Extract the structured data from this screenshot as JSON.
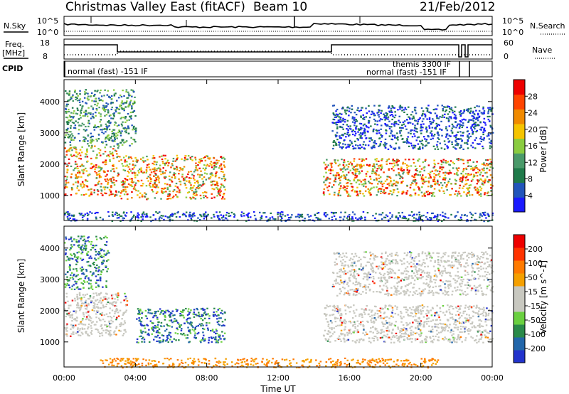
{
  "header": {
    "title": "Christmas Valley East (fitACF)",
    "beam": "Beam 10",
    "date": "21/Feb/2012"
  },
  "panel_labels": {
    "nsky": "N.Sky",
    "nsearch": "N.Search",
    "freq_top": "Freq.",
    "freq_unit": "[MHz]",
    "nave": "Nave",
    "cpid": "CPID"
  },
  "noise_ticks_left": [
    "10^5",
    "10^0"
  ],
  "noise_ticks_right": [
    "10^5",
    "10^0"
  ],
  "freq_ticks": [
    "18",
    "8"
  ],
  "nave_ticks": [
    "60",
    "0"
  ],
  "cpid_labels": {
    "left": "normal (fast) -151 IF",
    "right_top": "themis 3300 IF",
    "right_bottom": "normal (fast) -151 IF"
  },
  "colors": {
    "power_scale": [
      "#1a1aff",
      "#2255bb",
      "#1f7a4a",
      "#4a9a6a",
      "#8acc40",
      "#f5c400",
      "#f08a00",
      "#ff4400",
      "#ee0000"
    ],
    "velocity_scale": [
      "#2233cc",
      "#2266aa",
      "#2a8a4a",
      "#6ad040",
      "#c8c8c0",
      "#c8c8c0",
      "#f5a000",
      "#ff7a00",
      "#ff3300",
      "#ee0000"
    ]
  },
  "chart_data": [
    {
      "type": "heatmap",
      "name": "power",
      "xlabel": "",
      "ylabel": "Slant Range [km]",
      "xlim": [
        "00:00",
        "00:00"
      ],
      "ylim": [
        200,
        4700
      ],
      "yticks": [
        "4000",
        "3000",
        "2000",
        "1000"
      ],
      "colorbar_label": "Power [dB]",
      "colorbar_ticks": [
        "28",
        "24",
        "20",
        "16",
        "12",
        "8",
        "4"
      ],
      "colorbar_range": [
        0,
        30
      ],
      "regions": [
        {
          "x_start": "00:00",
          "x_end": "03:00",
          "range_km": [
            1000,
            2600
          ],
          "level": "high"
        },
        {
          "x_start": "00:00",
          "x_end": "04:00",
          "range_km": [
            2600,
            4400
          ],
          "level": "medium"
        },
        {
          "x_start": "03:00",
          "x_end": "09:00",
          "range_km": [
            900,
            2300
          ],
          "level": "high"
        },
        {
          "x_start": "14:30",
          "x_end": "24:00",
          "range_km": [
            1000,
            2200
          ],
          "level": "high"
        },
        {
          "x_start": "15:00",
          "x_end": "24:00",
          "range_km": [
            2500,
            3900
          ],
          "level": "low"
        },
        {
          "x_start": "00:00",
          "x_end": "24:00",
          "range_km": [
            200,
            500
          ],
          "level": "low"
        }
      ]
    },
    {
      "type": "heatmap",
      "name": "velocity",
      "xlabel": "Time UT",
      "ylabel": "Slant Range [km]",
      "xticks": [
        "00:00",
        "04:00",
        "08:00",
        "12:00",
        "16:00",
        "20:00",
        "00:00"
      ],
      "ylim": [
        200,
        4700
      ],
      "yticks": [
        "4000",
        "3000",
        "2000",
        "1000"
      ],
      "colorbar_label": "Velocity [m s^-1]",
      "colorbar_ticks": [
        "200",
        "100",
        "50",
        "15",
        "-15",
        "-50",
        "-100",
        "-200"
      ],
      "colorbar_range": [
        -250,
        250
      ],
      "regions": [
        {
          "x_start": "00:00",
          "x_end": "03:30",
          "range_km": [
            1200,
            2600
          ],
          "level": "near-zero"
        },
        {
          "x_start": "00:00",
          "x_end": "02:30",
          "range_km": [
            2700,
            4400
          ],
          "level": "positive"
        },
        {
          "x_start": "04:00",
          "x_end": "09:00",
          "range_km": [
            1000,
            2100
          ],
          "level": "positive"
        },
        {
          "x_start": "14:30",
          "x_end": "24:00",
          "range_km": [
            1000,
            2200
          ],
          "level": "near-zero"
        },
        {
          "x_start": "15:00",
          "x_end": "24:00",
          "range_km": [
            2500,
            3900
          ],
          "level": "near-zero"
        },
        {
          "x_start": "02:00",
          "x_end": "21:00",
          "range_km": [
            200,
            500
          ],
          "level": "negative"
        }
      ]
    }
  ]
}
